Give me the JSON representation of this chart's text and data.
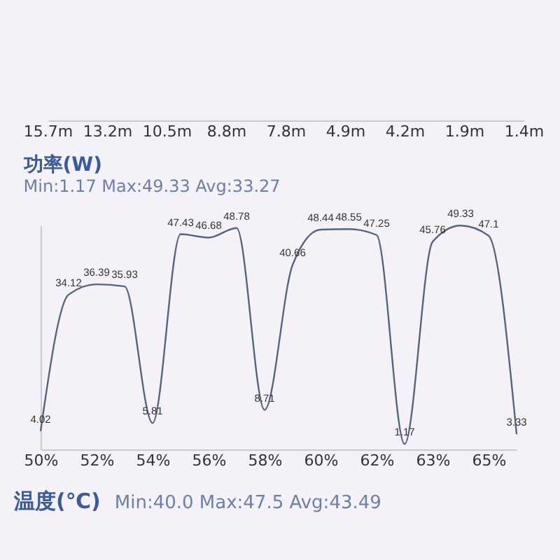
{
  "chart_data": [
    {
      "type": "other",
      "categories": [
        "15.7m",
        "13.2m",
        "10.5m",
        "8.8m",
        "7.8m",
        "4.9m",
        "4.2m",
        "1.9m",
        "1.4m"
      ]
    },
    {
      "type": "line",
      "title": "功率(W)",
      "subtitle": "Min:1.17   Max:49.33   Avg:33.27",
      "color": "#56657f",
      "tick_labels": "x",
      "data_labels": true,
      "categories": [
        "50%",
        null,
        "52%",
        null,
        "54%",
        null,
        "56%",
        null,
        "58%",
        null,
        "60%",
        null,
        "62%",
        null,
        "63%",
        null,
        "65%",
        null
      ],
      "values": [
        4.02,
        34.12,
        36.39,
        35.93,
        5.81,
        47.43,
        46.68,
        48.78,
        8.71,
        40.66,
        48.44,
        48.55,
        47.25,
        1.17,
        45.76,
        49.33,
        47.1,
        3.33
      ],
      "ylim": [
        0,
        49.37
      ]
    },
    {
      "type": "other",
      "title": "温度(℃)",
      "subtitle": "Min:40.0   Max:47.5   Avg:43.49"
    }
  ]
}
